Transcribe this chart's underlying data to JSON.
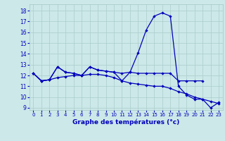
{
  "title": "Graphe des températures (°c)",
  "x_labels": [
    "0",
    "1",
    "2",
    "3",
    "4",
    "5",
    "6",
    "7",
    "8",
    "9",
    "10",
    "11",
    "12",
    "13",
    "14",
    "15",
    "16",
    "17",
    "18",
    "19",
    "20",
    "21",
    "22",
    "23"
  ],
  "hours": [
    0,
    1,
    2,
    3,
    4,
    5,
    6,
    7,
    8,
    9,
    10,
    11,
    12,
    13,
    14,
    15,
    16,
    17,
    18,
    19,
    20,
    21,
    22,
    23
  ],
  "line_main": [
    12.2,
    11.5,
    11.6,
    12.8,
    12.3,
    12.2,
    12.0,
    12.8,
    12.5,
    12.4,
    12.3,
    11.5,
    12.3,
    14.1,
    16.2,
    17.5,
    17.8,
    17.5,
    11.0,
    10.2,
    9.8,
    9.8,
    9.0,
    9.5
  ],
  "line_mid": [
    12.2,
    11.5,
    11.6,
    12.8,
    12.3,
    12.2,
    12.0,
    12.8,
    12.5,
    12.4,
    12.3,
    12.2,
    12.3,
    12.2,
    12.2,
    12.2,
    12.2,
    12.2,
    11.5,
    11.5,
    11.5,
    11.5,
    null,
    null
  ],
  "line_low": [
    12.2,
    11.5,
    11.6,
    11.8,
    11.9,
    12.0,
    12.0,
    12.1,
    12.1,
    12.0,
    11.8,
    11.5,
    11.3,
    11.2,
    11.1,
    11.0,
    11.0,
    10.8,
    10.5,
    10.3,
    10.0,
    9.8,
    9.6,
    9.4
  ],
  "bg_color": "#cce8e8",
  "line_color": "#0000bb",
  "grid_color": "#aacccc",
  "label_color": "#0000bb",
  "ylim": [
    8.8,
    18.6
  ],
  "xlim": [
    -0.5,
    23.5
  ]
}
